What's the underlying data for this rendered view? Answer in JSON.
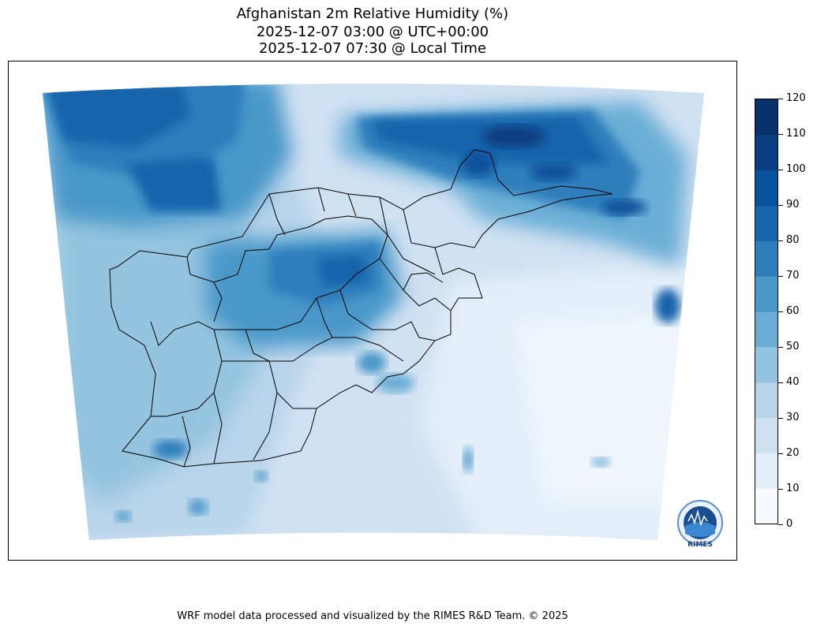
{
  "title": {
    "line1": "Afghanistan 2m Relative Humidity (%)",
    "line2": "2025-12-07 03:00 @ UTC+00:00",
    "line3": "2025-12-07 07:30 @ Local Time"
  },
  "colorbar": {
    "ticks": [
      "0",
      "10",
      "20",
      "30",
      "40",
      "50",
      "60",
      "70",
      "80",
      "90",
      "100",
      "110",
      "120"
    ],
    "colors": [
      "#f7fbff",
      "#e3eef9",
      "#d0e1f2",
      "#b7d4ea",
      "#94c4df",
      "#6aaed6",
      "#4a98c9",
      "#2e7ebc",
      "#1764ab",
      "#08519c",
      "#083e80",
      "#08306b"
    ]
  },
  "logo": {
    "text": "RIMES"
  },
  "footer": "WRF model data processed and visualized by the RIMES R&D Team. © 2025"
}
